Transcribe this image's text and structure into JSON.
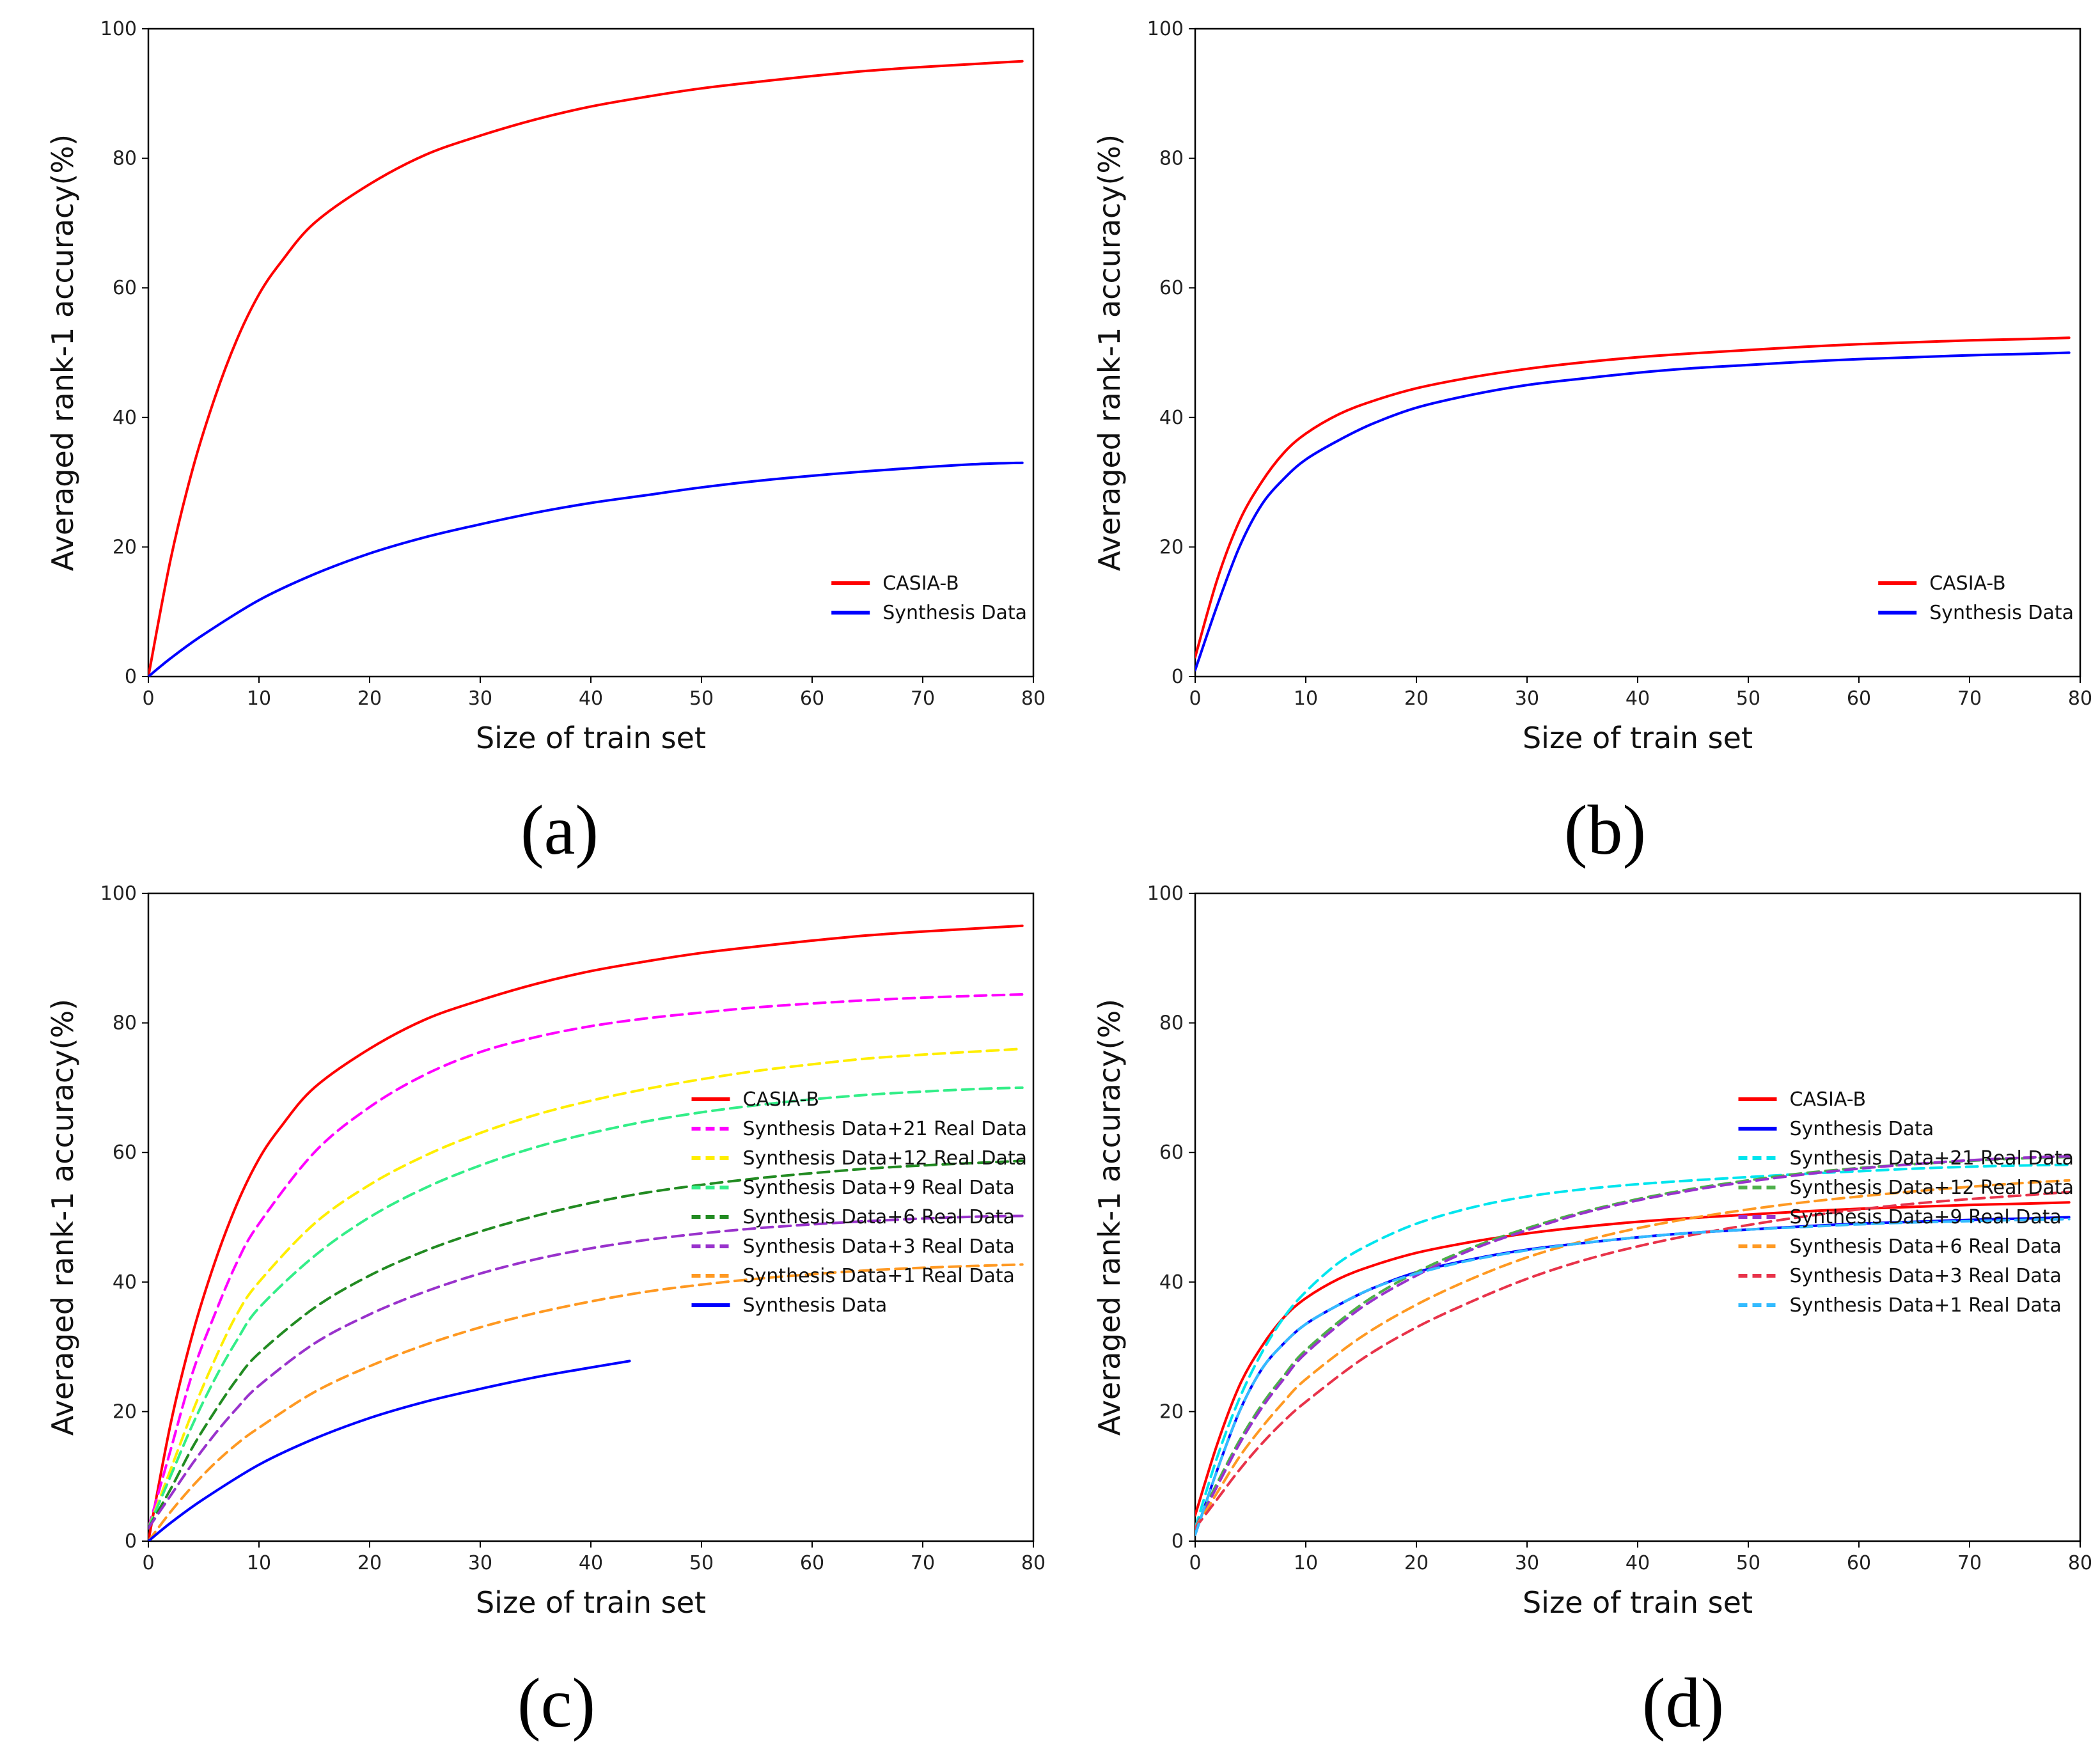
{
  "chart_data": [
    {
      "type": "line",
      "panel_label": "(a)",
      "xlabel": "Size of train set",
      "ylabel": "Averaged rank-1 accuracy(%)",
      "xlim": [
        0,
        80
      ],
      "ylim": [
        0,
        100
      ],
      "xticks": [
        "0",
        "10",
        "20",
        "30",
        "40",
        "50",
        "60",
        "70",
        "80"
      ],
      "yticks": [
        "0",
        "20",
        "40",
        "60",
        "80",
        "100"
      ],
      "legend_position": "lower-right",
      "series": [
        {
          "name": "CASIA-B",
          "color": "#ff0000",
          "dash": "solid",
          "x": [
            0,
            2,
            4,
            6,
            8,
            10,
            12,
            15,
            20,
            25,
            30,
            35,
            40,
            45,
            50,
            55,
            60,
            65,
            70,
            75,
            79
          ],
          "y": [
            0,
            18,
            32,
            43,
            52,
            59,
            64,
            70,
            76,
            80.5,
            83.5,
            86,
            88,
            89.5,
            90.8,
            91.8,
            92.7,
            93.5,
            94.1,
            94.6,
            95
          ]
        },
        {
          "name": "Synthesis Data",
          "color": "#0000ff",
          "dash": "solid",
          "x": [
            0,
            2,
            5,
            10,
            15,
            20,
            25,
            30,
            35,
            40,
            45,
            50,
            55,
            60,
            65,
            70,
            75,
            79
          ],
          "y": [
            0,
            2.8,
            6.5,
            11.8,
            15.8,
            19,
            21.5,
            23.5,
            25.3,
            26.8,
            28,
            29.2,
            30.2,
            31,
            31.7,
            32.3,
            32.8,
            33
          ]
        }
      ]
    },
    {
      "type": "line",
      "panel_label": "(b)",
      "xlabel": "Size of train set",
      "ylabel": "Averaged rank-1 accuracy(%)",
      "xlim": [
        0,
        80
      ],
      "ylim": [
        0,
        100
      ],
      "xticks": [
        "0",
        "10",
        "20",
        "30",
        "40",
        "50",
        "60",
        "70",
        "80"
      ],
      "yticks": [
        "0",
        "20",
        "40",
        "60",
        "80",
        "100"
      ],
      "legend_position": "lower-right",
      "series": [
        {
          "name": "CASIA-B",
          "color": "#ff0000",
          "dash": "solid",
          "x": [
            0,
            2,
            4,
            6,
            8,
            10,
            13,
            16,
            20,
            25,
            30,
            35,
            40,
            45,
            50,
            55,
            60,
            65,
            70,
            75,
            79
          ],
          "y": [
            3,
            15,
            24,
            30,
            34.5,
            37.5,
            40.5,
            42.5,
            44.5,
            46.2,
            47.5,
            48.5,
            49.3,
            49.9,
            50.4,
            50.9,
            51.3,
            51.6,
            51.9,
            52.1,
            52.3
          ]
        },
        {
          "name": "Synthesis Data",
          "color": "#0000ff",
          "dash": "solid",
          "x": [
            0,
            2,
            4,
            6,
            8,
            10,
            13,
            16,
            20,
            25,
            30,
            35,
            40,
            45,
            50,
            55,
            60,
            65,
            70,
            75,
            79
          ],
          "y": [
            1,
            11,
            20,
            26.5,
            30.5,
            33.5,
            36.5,
            39,
            41.5,
            43.5,
            45,
            46,
            46.9,
            47.6,
            48.1,
            48.6,
            49,
            49.3,
            49.6,
            49.8,
            50
          ]
        }
      ]
    },
    {
      "type": "line",
      "panel_label": "(c)",
      "xlabel": "Size of train set",
      "ylabel": "Averaged rank-1 accuracy(%)",
      "xlim": [
        0,
        80
      ],
      "ylim": [
        0,
        100
      ],
      "xticks": [
        "0",
        "10",
        "20",
        "30",
        "40",
        "50",
        "60",
        "70",
        "80"
      ],
      "yticks": [
        "0",
        "20",
        "40",
        "60",
        "80",
        "100"
      ],
      "legend_position": "lower-right",
      "series": [
        {
          "name": "CASIA-B",
          "color": "#ff0000",
          "dash": "solid",
          "x": [
            0,
            2,
            4,
            6,
            8,
            10,
            12,
            15,
            20,
            25,
            30,
            35,
            40,
            45,
            50,
            55,
            60,
            65,
            70,
            75,
            79
          ],
          "y": [
            0,
            18,
            32,
            43,
            52,
            59,
            64,
            70,
            76,
            80.5,
            83.5,
            86,
            88,
            89.5,
            90.8,
            91.8,
            92.7,
            93.5,
            94.1,
            94.6,
            95
          ]
        },
        {
          "name": "Synthesis Data+21 Real Data",
          "color": "#ff00ff",
          "dash": "dashed",
          "x": [
            0,
            2,
            4,
            6,
            8,
            10,
            15,
            20,
            25,
            30,
            35,
            40,
            45,
            50,
            55,
            60,
            65,
            70,
            75,
            79
          ],
          "y": [
            2,
            14,
            26,
            35,
            43,
            49,
            60,
            67,
            72,
            75.5,
            77.8,
            79.5,
            80.7,
            81.6,
            82.4,
            83,
            83.5,
            83.9,
            84.2,
            84.4
          ]
        },
        {
          "name": "Synthesis Data+12 Real Data",
          "color": "#ffee00",
          "dash": "dashed",
          "x": [
            0,
            2,
            4,
            6,
            8,
            10,
            15,
            20,
            25,
            30,
            35,
            40,
            45,
            50,
            55,
            60,
            65,
            70,
            75,
            79
          ],
          "y": [
            2,
            11,
            20,
            28,
            35,
            40,
            49,
            55,
            59.5,
            63,
            65.8,
            68,
            69.8,
            71.3,
            72.6,
            73.6,
            74.5,
            75.1,
            75.6,
            76
          ]
        },
        {
          "name": "Synthesis Data+9 Real Data",
          "color": "#33ee88",
          "dash": "dashed",
          "x": [
            0,
            2,
            4,
            6,
            8,
            10,
            15,
            20,
            25,
            30,
            35,
            40,
            45,
            50,
            55,
            60,
            65,
            70,
            75,
            79
          ],
          "y": [
            2,
            10,
            18,
            25,
            31,
            36,
            44,
            50,
            54.5,
            58,
            60.8,
            63,
            64.8,
            66.2,
            67.3,
            68.2,
            68.9,
            69.4,
            69.8,
            70
          ]
        },
        {
          "name": "Synthesis Data+6 Real Data",
          "color": "#228b22",
          "dash": "dashed",
          "x": [
            0,
            2,
            4,
            6,
            8,
            10,
            15,
            20,
            25,
            30,
            35,
            40,
            45,
            50,
            55,
            60,
            65,
            70,
            75,
            79
          ],
          "y": [
            2,
            8,
            14.5,
            20,
            25,
            29,
            36,
            41,
            44.8,
            47.8,
            50.2,
            52.2,
            53.8,
            55,
            56,
            56.8,
            57.5,
            58,
            58.4,
            58.7
          ]
        },
        {
          "name": "Synthesis Data+3 Real Data",
          "color": "#9932cc",
          "dash": "dashed",
          "x": [
            0,
            2,
            4,
            6,
            8,
            10,
            15,
            20,
            25,
            30,
            35,
            40,
            45,
            50,
            55,
            60,
            65,
            70,
            75,
            79
          ],
          "y": [
            2,
            7,
            12,
            16.5,
            20.5,
            24,
            30.5,
            35,
            38.5,
            41.3,
            43.5,
            45.2,
            46.5,
            47.5,
            48.3,
            48.9,
            49.4,
            49.8,
            50.1,
            50.2
          ]
        },
        {
          "name": "Synthesis Data+1 Real Data",
          "color": "#ff9922",
          "dash": "dashed",
          "x": [
            0,
            2,
            4,
            6,
            8,
            10,
            15,
            20,
            25,
            30,
            35,
            40,
            45,
            50,
            55,
            60,
            65,
            70,
            75,
            79
          ],
          "y": [
            0,
            4.5,
            8.5,
            12,
            15,
            17.5,
            23,
            27,
            30.3,
            33,
            35.2,
            37,
            38.5,
            39.6,
            40.5,
            41.2,
            41.8,
            42.2,
            42.5,
            42.7
          ]
        },
        {
          "name": "Synthesis Data",
          "color": "#0000ff",
          "dash": "solid",
          "x": [
            0,
            2,
            5,
            10,
            15,
            20,
            25,
            30,
            35,
            40,
            43.5
          ],
          "y": [
            0,
            2.8,
            6.5,
            11.8,
            15.8,
            19,
            21.5,
            23.5,
            25.3,
            26.8,
            27.8
          ]
        }
      ]
    },
    {
      "type": "line",
      "panel_label": "(d)",
      "xlabel": "Size of train set",
      "ylabel": "Averaged rank-1 accuracy(%)",
      "xlim": [
        0,
        80
      ],
      "ylim": [
        0,
        100
      ],
      "xticks": [
        "0",
        "10",
        "20",
        "30",
        "40",
        "50",
        "60",
        "70",
        "80"
      ],
      "yticks": [
        "0",
        "20",
        "40",
        "60",
        "80",
        "100"
      ],
      "legend_position": "lower-right",
      "series": [
        {
          "name": "CASIA-B",
          "color": "#ff0000",
          "dash": "solid",
          "x": [
            0,
            2,
            4,
            6,
            8,
            10,
            13,
            16,
            20,
            25,
            30,
            35,
            40,
            45,
            50,
            55,
            60,
            65,
            70,
            75,
            79
          ],
          "y": [
            4,
            15,
            24,
            30,
            34.5,
            37.5,
            40.5,
            42.5,
            44.5,
            46.2,
            47.5,
            48.5,
            49.3,
            49.9,
            50.4,
            50.9,
            51.3,
            51.6,
            51.9,
            52.1,
            52.3
          ]
        },
        {
          "name": "Synthesis Data",
          "color": "#0000ff",
          "dash": "solid",
          "x": [
            0,
            2,
            4,
            6,
            8,
            10,
            13,
            16,
            20,
            25,
            30,
            35,
            40,
            45,
            50,
            55,
            60,
            65,
            70,
            75,
            79
          ],
          "y": [
            1,
            11,
            20,
            26.5,
            30.5,
            33.5,
            36.5,
            39,
            41.5,
            43.5,
            45,
            46,
            46.9,
            47.6,
            48.1,
            48.6,
            49,
            49.3,
            49.6,
            49.8,
            50
          ]
        },
        {
          "name": "Synthesis Data+21 Real Data",
          "color": "#00e5ee",
          "dash": "dashed",
          "x": [
            0,
            2,
            4,
            6,
            8,
            10,
            13,
            16,
            20,
            25,
            30,
            35,
            40,
            45,
            50,
            55,
            60,
            65,
            70,
            75,
            79
          ],
          "y": [
            2,
            13,
            22,
            29,
            34.5,
            38.5,
            43,
            46,
            49,
            51.5,
            53.2,
            54.3,
            55.1,
            55.7,
            56.2,
            56.7,
            57.1,
            57.5,
            57.8,
            58,
            58.1
          ]
        },
        {
          "name": "Synthesis Data+12 Real Data",
          "color": "#4daf4a",
          "dash": "dashed",
          "x": [
            0,
            2,
            4,
            6,
            8,
            10,
            15,
            20,
            25,
            30,
            35,
            40,
            45,
            50,
            55,
            60,
            65,
            70,
            75,
            79
          ],
          "y": [
            2,
            9,
            15.5,
            21,
            25.5,
            29.5,
            36.5,
            41.5,
            45.3,
            48.3,
            50.8,
            52.8,
            54.4,
            55.7,
            56.8,
            57.6,
            58.2,
            58.7,
            59.1,
            59.3
          ]
        },
        {
          "name": "Synthesis Data+9 Real Data",
          "color": "#9932cc",
          "dash": "dashed",
          "x": [
            0,
            2,
            4,
            6,
            8,
            10,
            15,
            20,
            25,
            30,
            35,
            40,
            45,
            50,
            55,
            60,
            65,
            70,
            75,
            79
          ],
          "y": [
            2,
            8.5,
            15,
            20.5,
            25,
            29,
            36,
            41,
            45,
            48,
            50.6,
            52.6,
            54.2,
            55.5,
            56.6,
            57.5,
            58.2,
            58.8,
            59.2,
            59.4
          ]
        },
        {
          "name": "Synthesis Data+6 Real Data",
          "color": "#ff9922",
          "dash": "dashed",
          "x": [
            0,
            2,
            4,
            6,
            8,
            10,
            15,
            20,
            25,
            30,
            35,
            40,
            45,
            50,
            55,
            60,
            65,
            70,
            75,
            79
          ],
          "y": [
            2,
            7.5,
            13,
            17.5,
            21.5,
            25,
            31.5,
            36.5,
            40.5,
            43.8,
            46.3,
            48.3,
            49.9,
            51.2,
            52.3,
            53.2,
            54,
            54.7,
            55.3,
            55.7
          ]
        },
        {
          "name": "Synthesis Data+3 Real Data",
          "color": "#e8334a",
          "dash": "dashed",
          "x": [
            0,
            2,
            4,
            6,
            8,
            10,
            15,
            20,
            25,
            30,
            35,
            40,
            45,
            50,
            55,
            60,
            65,
            70,
            75,
            79
          ],
          "y": [
            2,
            6.5,
            11,
            15,
            18.5,
            21.5,
            28,
            33,
            37,
            40.5,
            43.3,
            45.5,
            47.3,
            48.8,
            50.1,
            51.2,
            52.1,
            52.8,
            53.4,
            53.9
          ]
        },
        {
          "name": "Synthesis Data+1 Real Data",
          "color": "#33bbff",
          "dash": "dashed",
          "x": [
            0,
            2,
            4,
            6,
            8,
            10,
            13,
            16,
            20,
            25,
            30,
            35,
            40,
            45,
            50,
            55,
            60,
            65,
            70,
            75,
            79
          ],
          "y": [
            1,
            11,
            20,
            26.5,
            30.5,
            33.5,
            36.5,
            39,
            41.3,
            43.4,
            44.9,
            46,
            46.9,
            47.6,
            48.1,
            48.5,
            48.9,
            49.2,
            49.4,
            49.6,
            49.7
          ]
        }
      ]
    }
  ]
}
